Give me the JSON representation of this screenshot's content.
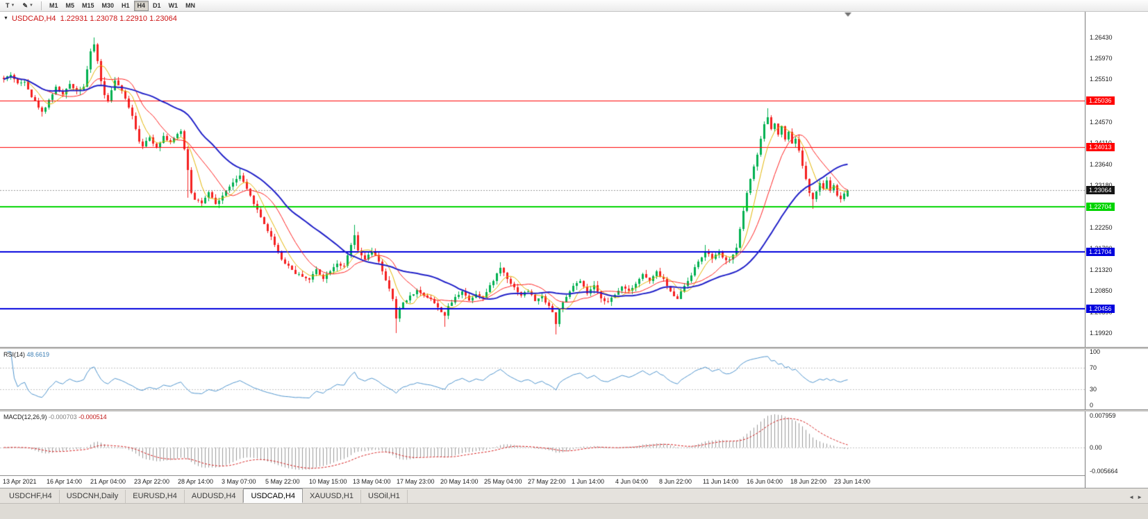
{
  "toolbar": {
    "chart_type_label": "T",
    "pencil_label": "✎",
    "timeframes": [
      "M1",
      "M5",
      "M15",
      "M30",
      "H1",
      "H4",
      "D1",
      "W1",
      "MN"
    ],
    "active_timeframe": "H4"
  },
  "chart_header": {
    "collapse_icon": "▼",
    "text": "USDCAD,H4  1.22931 1.23078 1.22910 1.23064"
  },
  "price_axis": {
    "ticks": [
      "1.26430",
      "1.25970",
      "1.25510",
      "1.25050",
      "1.24570",
      "1.24110",
      "1.23640",
      "1.23180",
      "1.22710",
      "1.22250",
      "1.21790",
      "1.21320",
      "1.20850",
      "1.20390",
      "1.19920"
    ]
  },
  "levels": [
    {
      "price": 1.25036,
      "label": "1.25036",
      "color": "#ff0000",
      "width": 1,
      "kind": "resistance"
    },
    {
      "price": 1.24013,
      "label": "1.24013",
      "color": "#ff0000",
      "width": 1,
      "kind": "resistance"
    },
    {
      "price": 1.23064,
      "label": "1.23064",
      "color": "#151515",
      "width": 1,
      "kind": "current"
    },
    {
      "price": 1.22704,
      "label": "1.22704",
      "color": "#00d400",
      "width": 2,
      "kind": "support"
    },
    {
      "price": 1.21704,
      "label": "1.21704",
      "color": "#0000dd",
      "width": 2,
      "kind": "support"
    },
    {
      "price": 1.20456,
      "label": "1.20456",
      "color": "#0000dd",
      "width": 2,
      "kind": "support"
    }
  ],
  "rsi_panel": {
    "title": "RSI(14)",
    "value": "48.6619",
    "levels": [
      "100",
      "70",
      "30",
      "0"
    ],
    "line_color": "#4f94cd"
  },
  "macd_panel": {
    "title": "MACD(12,26,9)",
    "main_value": "-0.000703",
    "signal_value": "-0.000514",
    "axis_labels": [
      "0.007959",
      "0.00",
      "-0.005664"
    ],
    "hist_color": "#9a9a9a",
    "signal_color": "#d41c1c"
  },
  "time_axis": {
    "labels": [
      "13 Apr 2021",
      "16 Apr 14:00",
      "21 Apr 04:00",
      "23 Apr 22:00",
      "28 Apr 14:00",
      "3 May 07:00",
      "5 May 22:00",
      "10 May 15:00",
      "13 May 04:00",
      "17 May 23:00",
      "20 May 14:00",
      "25 May 04:00",
      "27 May 22:00",
      "1 Jun 14:00",
      "4 Jun 04:00",
      "8 Jun 22:00",
      "11 Jun 14:00",
      "16 Jun 04:00",
      "18 Jun 22:00",
      "23 Jun 14:00"
    ]
  },
  "tabs": {
    "items": [
      {
        "label": "USDCHF,H4",
        "active": false
      },
      {
        "label": "USDCNH,Daily",
        "active": false
      },
      {
        "label": "EURUSD,H4",
        "active": false
      },
      {
        "label": "AUDUSD,H4",
        "active": false
      },
      {
        "label": "USDCAD,H4",
        "active": true
      },
      {
        "label": "XAUUSD,H1",
        "active": false
      },
      {
        "label": "USOil,H1",
        "active": false
      }
    ],
    "scroll_left": "◄",
    "scroll_right": "►"
  },
  "chart_data": {
    "type": "candlestick",
    "symbol": "USDCAD",
    "timeframe": "H4",
    "title": "USDCAD,H4",
    "last_ohlc": {
      "open": 1.22931,
      "high": 1.23078,
      "low": 1.2291,
      "close": 1.23064
    },
    "y_min": 1.1962,
    "y_max": 1.2699,
    "candle_count": 244,
    "bull_color": "#00b050",
    "bear_color": "#f42020",
    "price_path": [
      [
        0,
        1.255
      ],
      [
        2,
        1.2562
      ],
      [
        4,
        1.254
      ],
      [
        6,
        1.2548
      ],
      [
        8,
        1.2512
      ],
      [
        10,
        1.249
      ],
      [
        11,
        1.2478
      ],
      [
        13,
        1.2505
      ],
      [
        15,
        1.2532
      ],
      [
        17,
        1.2516
      ],
      [
        19,
        1.254
      ],
      [
        21,
        1.2525
      ],
      [
        23,
        1.2535
      ],
      [
        25,
        1.261
      ],
      [
        26,
        1.2628
      ],
      [
        27,
        1.259
      ],
      [
        28,
        1.2548
      ],
      [
        29,
        1.2515
      ],
      [
        30,
        1.2502
      ],
      [
        31,
        1.2528
      ],
      [
        32,
        1.2546
      ],
      [
        33,
        1.2538
      ],
      [
        35,
        1.2508
      ],
      [
        37,
        1.2472
      ],
      [
        38,
        1.2442
      ],
      [
        39,
        1.2415
      ],
      [
        40,
        1.2405
      ],
      [
        42,
        1.2422
      ],
      [
        44,
        1.2402
      ],
      [
        46,
        1.2425
      ],
      [
        48,
        1.2412
      ],
      [
        50,
        1.2428
      ],
      [
        51,
        1.2436
      ],
      [
        52,
        1.2398
      ],
      [
        53,
        1.2352
      ],
      [
        54,
        1.2302
      ],
      [
        55,
        1.2288
      ],
      [
        57,
        1.2278
      ],
      [
        59,
        1.23
      ],
      [
        61,
        1.2276
      ],
      [
        63,
        1.2294
      ],
      [
        65,
        1.2316
      ],
      [
        67,
        1.233
      ],
      [
        68,
        1.2338
      ],
      [
        70,
        1.2308
      ],
      [
        72,
        1.2278
      ],
      [
        74,
        1.2248
      ],
      [
        76,
        1.2218
      ],
      [
        78,
        1.2188
      ],
      [
        80,
        1.2155
      ],
      [
        82,
        1.214
      ],
      [
        84,
        1.2124
      ],
      [
        86,
        1.2118
      ],
      [
        88,
        1.211
      ],
      [
        90,
        1.2132
      ],
      [
        92,
        1.2114
      ],
      [
        94,
        1.213
      ],
      [
        96,
        1.2146
      ],
      [
        98,
        1.2138
      ],
      [
        100,
        1.2185
      ],
      [
        101,
        1.2208
      ],
      [
        102,
        1.2172
      ],
      [
        104,
        1.2155
      ],
      [
        106,
        1.2172
      ],
      [
        108,
        1.215
      ],
      [
        110,
        1.2108
      ],
      [
        112,
        1.2068
      ],
      [
        113,
        1.2022
      ],
      [
        114,
        1.2046
      ],
      [
        115,
        1.206
      ],
      [
        117,
        1.2074
      ],
      [
        119,
        1.2086
      ],
      [
        121,
        1.2076
      ],
      [
        123,
        1.2068
      ],
      [
        125,
        1.2048
      ],
      [
        127,
        1.2032
      ],
      [
        128,
        1.205
      ],
      [
        130,
        1.207
      ],
      [
        132,
        1.2086
      ],
      [
        134,
        1.2064
      ],
      [
        136,
        1.208
      ],
      [
        138,
        1.207
      ],
      [
        140,
        1.2096
      ],
      [
        142,
        1.2122
      ],
      [
        143,
        1.2136
      ],
      [
        145,
        1.2114
      ],
      [
        147,
        1.2092
      ],
      [
        149,
        1.2076
      ],
      [
        151,
        1.2086
      ],
      [
        153,
        1.2064
      ],
      [
        155,
        1.2072
      ],
      [
        157,
        1.2052
      ],
      [
        158,
        1.2038
      ],
      [
        159,
        1.2012
      ],
      [
        160,
        1.2046
      ],
      [
        162,
        1.207
      ],
      [
        164,
        1.2096
      ],
      [
        166,
        1.2106
      ],
      [
        168,
        1.208
      ],
      [
        170,
        1.2096
      ],
      [
        172,
        1.207
      ],
      [
        174,
        1.206
      ],
      [
        176,
        1.2076
      ],
      [
        178,
        1.2096
      ],
      [
        180,
        1.2086
      ],
      [
        182,
        1.2102
      ],
      [
        184,
        1.2122
      ],
      [
        186,
        1.2106
      ],
      [
        188,
        1.2126
      ],
      [
        190,
        1.211
      ],
      [
        192,
        1.2082
      ],
      [
        194,
        1.207
      ],
      [
        196,
        1.2096
      ],
      [
        198,
        1.2122
      ],
      [
        200,
        1.215
      ],
      [
        202,
        1.2172
      ],
      [
        204,
        1.2156
      ],
      [
        206,
        1.217
      ],
      [
        208,
        1.215
      ],
      [
        210,
        1.2162
      ],
      [
        211,
        1.2182
      ],
      [
        212,
        1.2222
      ],
      [
        213,
        1.2262
      ],
      [
        214,
        1.2302
      ],
      [
        215,
        1.2332
      ],
      [
        216,
        1.2356
      ],
      [
        217,
        1.2382
      ],
      [
        218,
        1.242
      ],
      [
        219,
        1.2452
      ],
      [
        220,
        1.2468
      ],
      [
        221,
        1.244
      ],
      [
        222,
        1.2456
      ],
      [
        223,
        1.243
      ],
      [
        224,
        1.2446
      ],
      [
        225,
        1.242
      ],
      [
        226,
        1.2436
      ],
      [
        227,
        1.241
      ],
      [
        228,
        1.2422
      ],
      [
        229,
        1.2392
      ],
      [
        230,
        1.2362
      ],
      [
        231,
        1.233
      ],
      [
        232,
        1.2302
      ],
      [
        233,
        1.2286
      ],
      [
        234,
        1.2302
      ],
      [
        235,
        1.2322
      ],
      [
        236,
        1.231
      ],
      [
        237,
        1.2326
      ],
      [
        238,
        1.2306
      ],
      [
        239,
        1.2316
      ],
      [
        240,
        1.2296
      ],
      [
        241,
        1.2286
      ],
      [
        242,
        1.23
      ],
      [
        243,
        1.23064
      ]
    ],
    "wick_extremes": [
      [
        11,
        "l",
        1.2468
      ],
      [
        26,
        "h",
        1.2643
      ],
      [
        53,
        "l",
        1.229
      ],
      [
        68,
        "h",
        1.2356
      ],
      [
        101,
        "h",
        1.223
      ],
      [
        113,
        "l",
        1.1993
      ],
      [
        127,
        "l",
        1.2006
      ],
      [
        143,
        "h",
        1.2148
      ],
      [
        159,
        "l",
        1.1989
      ],
      [
        202,
        "h",
        1.2186
      ],
      [
        220,
        "h",
        1.2487
      ],
      [
        233,
        "l",
        1.2266
      ]
    ],
    "moving_averages": [
      {
        "name": "fast",
        "period": 6,
        "color": "#e2b400",
        "width": 1
      },
      {
        "name": "medium",
        "period": 13,
        "color": "#ff2020",
        "width": 1
      },
      {
        "name": "slow",
        "period": 30,
        "color": "#2020c8",
        "width": 2
      }
    ],
    "indicators": {
      "rsi": {
        "period": 14,
        "levels": [
          100,
          70,
          30,
          0
        ]
      },
      "macd": {
        "fast": 12,
        "slow": 26,
        "signal": 9
      }
    }
  }
}
